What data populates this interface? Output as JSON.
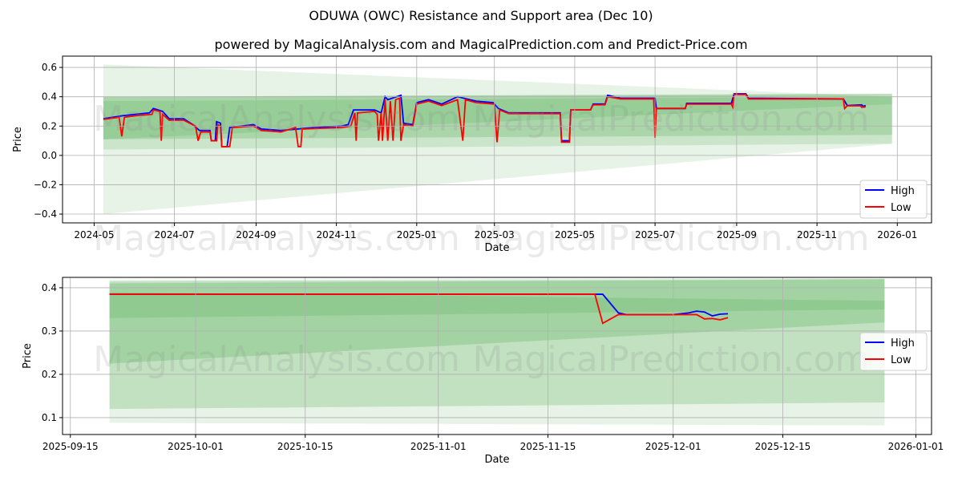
{
  "title": "ODUWA (OWC) Resistance and Support area (Dec 10)",
  "subtitle": "powered by MagicalAnalysis.com and MagicalPrediction.com and Predict-Price.com",
  "watermarks": [
    "MagicalAnalysis.com",
    "MagicalPrediction.com"
  ],
  "colors": {
    "high": "#0000ff",
    "low": "#ff0000",
    "band": "#2e9a2e"
  },
  "chart_data": [
    {
      "type": "line",
      "xlabel": "Date",
      "ylabel": "Price",
      "xlim": [
        "2024-04-07",
        "2026-01-27"
      ],
      "ylim": [
        -0.46,
        0.677
      ],
      "xticks": [
        "2024-05",
        "2024-07",
        "2024-09",
        "2024-11",
        "2025-01",
        "2025-03",
        "2025-05",
        "2025-07",
        "2025-09",
        "2025-11",
        "2026-01"
      ],
      "yticks": [
        -0.4,
        -0.2,
        0.0,
        0.2,
        0.4,
        0.6
      ],
      "ytick_labels": [
        "−0.4",
        "−0.2",
        "0.0",
        "0.2",
        "0.4",
        "0.6"
      ],
      "legend": {
        "position": "lower-right",
        "entries": [
          "High",
          "Low"
        ]
      },
      "bands": [
        {
          "start": "2024-05-08",
          "end": "2025-12-28",
          "start_range": [
            -0.4,
            0.62
          ],
          "end_range": [
            0.08,
            0.4
          ],
          "alpha": 0.12
        },
        {
          "start": "2024-05-08",
          "end": "2025-12-28",
          "start_range": [
            0.04,
            0.4
          ],
          "end_range": [
            0.08,
            0.42
          ],
          "alpha": 0.15
        },
        {
          "start": "2024-05-08",
          "end": "2025-12-28",
          "start_range": [
            0.11,
            0.4
          ],
          "end_range": [
            0.14,
            0.42
          ],
          "alpha": 0.2
        },
        {
          "start": "2024-05-08",
          "end": "2025-12-28",
          "start_range": [
            0.11,
            0.37
          ],
          "end_range": [
            0.35,
            0.4
          ],
          "alpha": 0.15
        }
      ],
      "series": [
        {
          "name": "High",
          "points": [
            [
              "2024-05-08",
              0.25
            ],
            [
              "2024-05-15",
              0.26
            ],
            [
              "2024-05-22",
              0.27
            ],
            [
              "2024-06-01",
              0.28
            ],
            [
              "2024-06-12",
              0.29
            ],
            [
              "2024-06-15",
              0.32
            ],
            [
              "2024-06-22",
              0.3
            ],
            [
              "2024-06-27",
              0.25
            ],
            [
              "2024-07-08",
              0.25
            ],
            [
              "2024-07-15",
              0.21
            ],
            [
              "2024-07-20",
              0.17
            ],
            [
              "2024-07-28",
              0.17
            ],
            [
              "2024-07-29",
              0.1
            ],
            [
              "2024-08-01",
              0.1
            ],
            [
              "2024-08-02",
              0.23
            ],
            [
              "2024-08-05",
              0.22
            ],
            [
              "2024-08-06",
              0.06
            ],
            [
              "2024-08-10",
              0.06
            ],
            [
              "2024-08-12",
              0.19
            ],
            [
              "2024-08-30",
              0.21
            ],
            [
              "2024-09-05",
              0.18
            ],
            [
              "2024-09-20",
              0.17
            ],
            [
              "2024-10-15",
              0.19
            ],
            [
              "2024-11-05",
              0.2
            ],
            [
              "2024-11-10",
              0.21
            ],
            [
              "2024-11-14",
              0.31
            ],
            [
              "2024-11-30",
              0.31
            ],
            [
              "2024-12-05",
              0.29
            ],
            [
              "2024-12-08",
              0.4
            ],
            [
              "2024-12-10",
              0.38
            ],
            [
              "2024-12-20",
              0.41
            ],
            [
              "2024-12-22",
              0.22
            ],
            [
              "2024-12-29",
              0.21
            ],
            [
              "2025-01-01",
              0.36
            ],
            [
              "2025-01-10",
              0.38
            ],
            [
              "2025-01-20",
              0.35
            ],
            [
              "2025-02-01",
              0.4
            ],
            [
              "2025-02-15",
              0.37
            ],
            [
              "2025-02-28",
              0.36
            ],
            [
              "2025-03-04",
              0.32
            ],
            [
              "2025-03-12",
              0.29
            ],
            [
              "2025-04-20",
              0.29
            ],
            [
              "2025-04-21",
              0.1
            ],
            [
              "2025-04-27",
              0.1
            ],
            [
              "2025-04-28",
              0.31
            ],
            [
              "2025-05-13",
              0.31
            ],
            [
              "2025-05-15",
              0.35
            ],
            [
              "2025-05-24",
              0.35
            ],
            [
              "2025-05-26",
              0.41
            ],
            [
              "2025-06-05",
              0.39
            ],
            [
              "2025-07-01",
              0.39
            ],
            [
              "2025-07-02",
              0.32
            ],
            [
              "2025-07-24",
              0.32
            ],
            [
              "2025-07-25",
              0.355
            ],
            [
              "2025-08-28",
              0.355
            ],
            [
              "2025-08-30",
              0.42
            ],
            [
              "2025-09-08",
              0.42
            ],
            [
              "2025-09-10",
              0.39
            ],
            [
              "2025-11-21",
              0.385
            ],
            [
              "2025-11-24",
              0.34
            ],
            [
              "2025-12-05",
              0.345
            ],
            [
              "2025-12-06",
              0.335
            ],
            [
              "2025-12-08",
              0.34
            ]
          ]
        },
        {
          "name": "Low",
          "points": [
            [
              "2024-05-08",
              0.245
            ],
            [
              "2024-05-20",
              0.26
            ],
            [
              "2024-05-22",
              0.13
            ],
            [
              "2024-05-24",
              0.26
            ],
            [
              "2024-06-01",
              0.27
            ],
            [
              "2024-06-14",
              0.28
            ],
            [
              "2024-06-15",
              0.31
            ],
            [
              "2024-06-20",
              0.3
            ],
            [
              "2024-06-21",
              0.1
            ],
            [
              "2024-06-22",
              0.28
            ],
            [
              "2024-06-27",
              0.24
            ],
            [
              "2024-07-08",
              0.24
            ],
            [
              "2024-07-17",
              0.2
            ],
            [
              "2024-07-19",
              0.1
            ],
            [
              "2024-07-21",
              0.16
            ],
            [
              "2024-07-28",
              0.16
            ],
            [
              "2024-07-29",
              0.1
            ],
            [
              "2024-08-02",
              0.1
            ],
            [
              "2024-08-03",
              0.21
            ],
            [
              "2024-08-05",
              0.2
            ],
            [
              "2024-08-06",
              0.06
            ],
            [
              "2024-08-12",
              0.06
            ],
            [
              "2024-08-14",
              0.19
            ],
            [
              "2024-08-30",
              0.2
            ],
            [
              "2024-09-05",
              0.17
            ],
            [
              "2024-09-20",
              0.16
            ],
            [
              "2024-10-01",
              0.19
            ],
            [
              "2024-10-03",
              0.06
            ],
            [
              "2024-10-05",
              0.06
            ],
            [
              "2024-10-06",
              0.18
            ],
            [
              "2024-11-05",
              0.19
            ],
            [
              "2024-11-12",
              0.2
            ],
            [
              "2024-11-15",
              0.29
            ],
            [
              "2024-11-16",
              0.1
            ],
            [
              "2024-11-17",
              0.29
            ],
            [
              "2024-11-30",
              0.3
            ],
            [
              "2024-12-02",
              0.28
            ],
            [
              "2024-12-03",
              0.1
            ],
            [
              "2024-12-05",
              0.29
            ],
            [
              "2024-12-06",
              0.1
            ],
            [
              "2024-12-08",
              0.38
            ],
            [
              "2024-12-10",
              0.1
            ],
            [
              "2024-12-12",
              0.37
            ],
            [
              "2024-12-14",
              0.1
            ],
            [
              "2024-12-16",
              0.38
            ],
            [
              "2024-12-19",
              0.39
            ],
            [
              "2024-12-20",
              0.1
            ],
            [
              "2024-12-22",
              0.21
            ],
            [
              "2024-12-29",
              0.2
            ],
            [
              "2025-01-01",
              0.35
            ],
            [
              "2025-01-10",
              0.37
            ],
            [
              "2025-01-20",
              0.34
            ],
            [
              "2025-02-01",
              0.38
            ],
            [
              "2025-02-05",
              0.1
            ],
            [
              "2025-02-07",
              0.38
            ],
            [
              "2025-02-15",
              0.36
            ],
            [
              "2025-03-01",
              0.35
            ],
            [
              "2025-03-03",
              0.09
            ],
            [
              "2025-03-05",
              0.31
            ],
            [
              "2025-03-12",
              0.285
            ],
            [
              "2025-04-20",
              0.285
            ],
            [
              "2025-04-21",
              0.09
            ],
            [
              "2025-04-27",
              0.09
            ],
            [
              "2025-04-28",
              0.31
            ],
            [
              "2025-05-13",
              0.31
            ],
            [
              "2025-05-15",
              0.345
            ],
            [
              "2025-05-24",
              0.345
            ],
            [
              "2025-05-26",
              0.4
            ],
            [
              "2025-06-05",
              0.385
            ],
            [
              "2025-06-30",
              0.385
            ],
            [
              "2025-07-01",
              0.12
            ],
            [
              "2025-07-02",
              0.32
            ],
            [
              "2025-07-24",
              0.32
            ],
            [
              "2025-07-25",
              0.35
            ],
            [
              "2025-08-28",
              0.35
            ],
            [
              "2025-08-29",
              0.33
            ],
            [
              "2025-08-30",
              0.415
            ],
            [
              "2025-09-08",
              0.415
            ],
            [
              "2025-09-10",
              0.385
            ],
            [
              "2025-11-21",
              0.385
            ],
            [
              "2025-11-22",
              0.32
            ],
            [
              "2025-11-24",
              0.338
            ],
            [
              "2025-12-04",
              0.338
            ],
            [
              "2025-12-05",
              0.328
            ],
            [
              "2025-12-08",
              0.331
            ]
          ]
        }
      ]
    },
    {
      "type": "line",
      "xlabel": "Date",
      "ylabel": "Price",
      "xlim": [
        "2025-09-14",
        "2026-01-03"
      ],
      "ylim": [
        0.061,
        0.424
      ],
      "xticks": [
        "2025-09-15",
        "2025-10-01",
        "2025-10-15",
        "2025-11-01",
        "2025-11-15",
        "2025-12-01",
        "2025-12-15",
        "2026-01-01"
      ],
      "yticks": [
        0.1,
        0.2,
        0.3,
        0.4
      ],
      "ytick_labels": [
        "0.1",
        "0.2",
        "0.3",
        "0.4"
      ],
      "legend": {
        "position": "center-right",
        "entries": [
          "High",
          "Low"
        ]
      },
      "bands": [
        {
          "start": "2025-09-20",
          "end": "2025-12-28",
          "start_range": [
            0.088,
            0.418
          ],
          "end_range": [
            0.082,
            0.422
          ],
          "alpha": 0.12
        },
        {
          "start": "2025-09-20",
          "end": "2025-12-28",
          "start_range": [
            0.12,
            0.415
          ],
          "end_range": [
            0.135,
            0.42
          ],
          "alpha": 0.2
        },
        {
          "start": "2025-09-20",
          "end": "2025-12-28",
          "start_range": [
            0.225,
            0.41
          ],
          "end_range": [
            0.32,
            0.42
          ],
          "alpha": 0.2
        },
        {
          "start": "2025-09-20",
          "end": "2025-12-28",
          "start_range": [
            0.33,
            0.39
          ],
          "end_range": [
            0.35,
            0.37
          ],
          "alpha": 0.15
        }
      ],
      "series": [
        {
          "name": "High",
          "points": [
            [
              "2025-09-20",
              0.385
            ],
            [
              "2025-11-22",
              0.385
            ],
            [
              "2025-11-24",
              0.342
            ],
            [
              "2025-11-25",
              0.338
            ],
            [
              "2025-12-01",
              0.338
            ],
            [
              "2025-12-03",
              0.342
            ],
            [
              "2025-12-04",
              0.346
            ],
            [
              "2025-12-05",
              0.344
            ],
            [
              "2025-12-06",
              0.335
            ],
            [
              "2025-12-07",
              0.339
            ],
            [
              "2025-12-08",
              0.34
            ]
          ]
        },
        {
          "name": "Low",
          "points": [
            [
              "2025-09-20",
              0.385
            ],
            [
              "2025-11-21",
              0.385
            ],
            [
              "2025-11-22",
              0.318
            ],
            [
              "2025-11-24",
              0.338
            ],
            [
              "2025-12-04",
              0.338
            ],
            [
              "2025-12-05",
              0.328
            ],
            [
              "2025-12-06",
              0.329
            ],
            [
              "2025-12-07",
              0.326
            ],
            [
              "2025-12-08",
              0.331
            ]
          ]
        }
      ]
    }
  ]
}
